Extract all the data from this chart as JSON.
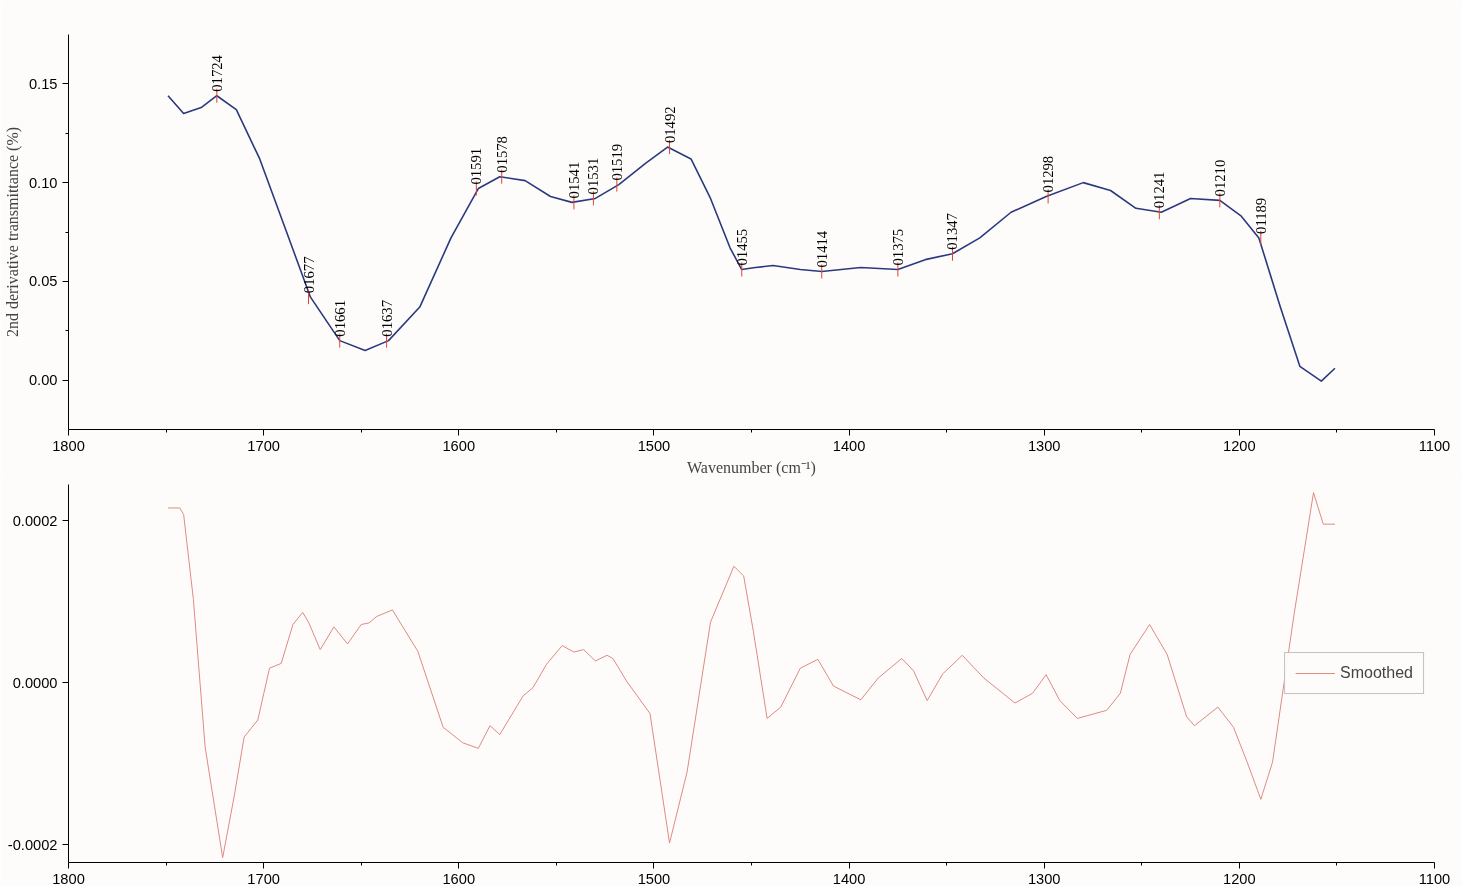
{
  "chart_data": [
    {
      "type": "line",
      "xlabel": "Wavenumber (cm⁻¹)",
      "ylabel": "2nd derivative transmittance (%)",
      "xlim": [
        1800,
        1100
      ],
      "ylim": [
        -0.025,
        0.175
      ],
      "xticks": [
        1800,
        {
          "value": 1750,
          "label": null
        },
        1700,
        {
          "value": 1650,
          "label": null
        },
        1600,
        {
          "value": 1550,
          "label": null
        },
        1500,
        {
          "value": 1450,
          "label": null
        },
        1400,
        {
          "value": 1350,
          "label": null
        },
        1300,
        {
          "value": 1250,
          "label": null
        },
        1200,
        {
          "value": 1150,
          "label": null
        },
        1100
      ],
      "yticks": [
        {
          "value": 0,
          "label": "0.00"
        },
        {
          "value": 0.025,
          "label": null
        },
        0.05,
        {
          "value": 0.075,
          "label": null
        },
        {
          "value": 0.1,
          "label": "0.10"
        },
        {
          "value": 0.125,
          "label": null
        },
        0.15
      ],
      "grid": false,
      "legend": false,
      "series": [
        {
          "color": "#2b3a7e",
          "x": [
            1749,
            1741,
            1732,
            1724,
            1714,
            1702,
            1689,
            1676,
            1661,
            1648,
            1636,
            1620,
            1604,
            1590,
            1579,
            1566,
            1553,
            1542,
            1530,
            1518,
            1504,
            1493,
            1481,
            1471,
            1461,
            1455,
            1448,
            1439,
            1425,
            1414,
            1394,
            1375,
            1361,
            1347,
            1333,
            1317,
            1299,
            1280,
            1266,
            1253,
            1240,
            1225,
            1210,
            1199,
            1190,
            1179,
            1169,
            1158,
            1151
          ],
          "values": [
            0.144,
            0.135,
            0.138,
            0.144,
            0.137,
            0.112,
            0.077,
            0.042,
            0.02,
            0.015,
            0.02,
            0.037,
            0.072,
            0.097,
            0.103,
            0.101,
            0.093,
            0.09,
            0.092,
            0.099,
            0.11,
            0.118,
            0.112,
            0.092,
            0.067,
            0.056,
            0.057,
            0.058,
            0.056,
            0.055,
            0.057,
            0.056,
            0.061,
            0.064,
            0.072,
            0.085,
            0.093,
            0.1,
            0.096,
            0.087,
            0.085,
            0.092,
            0.091,
            0.083,
            0.072,
            0.037,
            0.007,
            -0.0005,
            0.006
          ]
        }
      ],
      "annotations": [
        {
          "text": "01724",
          "x": 1724,
          "y": 0.144
        },
        {
          "text": "01677",
          "x": 1677,
          "y": 0.042
        },
        {
          "text": "01661",
          "x": 1661,
          "y": 0.02
        },
        {
          "text": "01637",
          "x": 1637,
          "y": 0.02
        },
        {
          "text": "01591",
          "x": 1591,
          "y": 0.097
        },
        {
          "text": "01578",
          "x": 1578,
          "y": 0.103
        },
        {
          "text": "01541",
          "x": 1541,
          "y": 0.09
        },
        {
          "text": "01531",
          "x": 1531,
          "y": 0.092
        },
        {
          "text": "01519",
          "x": 1519,
          "y": 0.099
        },
        {
          "text": "01492",
          "x": 1492,
          "y": 0.118
        },
        {
          "text": "01455",
          "x": 1455,
          "y": 0.056
        },
        {
          "text": "01414",
          "x": 1414,
          "y": 0.055
        },
        {
          "text": "01375",
          "x": 1375,
          "y": 0.056
        },
        {
          "text": "01347",
          "x": 1347,
          "y": 0.064
        },
        {
          "text": "01298",
          "x": 1298,
          "y": 0.093
        },
        {
          "text": "01241",
          "x": 1241,
          "y": 0.085
        },
        {
          "text": "01210",
          "x": 1210,
          "y": 0.091
        },
        {
          "text": "01189",
          "x": 1189,
          "y": 0.072
        }
      ]
    },
    {
      "type": "line",
      "xlim": [
        1800,
        1100
      ],
      "ylim": [
        -0.000222,
        0.000245
      ],
      "xticks": [
        1800,
        {
          "value": 1750,
          "label": null
        },
        1700,
        {
          "value": 1650,
          "label": null
        },
        1600,
        {
          "value": 1550,
          "label": null
        },
        1500,
        {
          "value": 1450,
          "label": null
        },
        1400,
        {
          "value": 1350,
          "label": null
        },
        1300,
        {
          "value": 1250,
          "label": null
        },
        1200,
        {
          "value": 1150,
          "label": null
        },
        1100
      ],
      "yticks": [
        -0.0002,
        {
          "value": 0,
          "label": "0.0000"
        },
        0.0002
      ],
      "grid": false,
      "legend": "right",
      "series": [
        {
          "name": "Smoothed",
          "color": "#e08a80",
          "x": [
            1749,
            1743,
            1741,
            1736,
            1730,
            1721,
            1715,
            1710,
            1703,
            1697,
            1691,
            1685,
            1680,
            1677,
            1671,
            1664,
            1657,
            1650,
            1646,
            1642,
            1634,
            1621,
            1608,
            1598,
            1590,
            1584,
            1579,
            1567,
            1562,
            1555,
            1547,
            1541,
            1536,
            1530,
            1524,
            1521,
            1514,
            1502,
            1492,
            1483,
            1471,
            1459,
            1454,
            1449,
            1442,
            1435,
            1425,
            1416,
            1408,
            1394,
            1385,
            1373,
            1367,
            1360,
            1352,
            1342,
            1331,
            1315,
            1306,
            1299,
            1292,
            1283,
            1268,
            1261,
            1256,
            1246,
            1237,
            1227,
            1223,
            1211,
            1203,
            1196,
            1189,
            1183,
            1172,
            1162,
            1157,
            1151
          ],
          "values": [
            0.000216,
            0.000216,
            0.000208,
            0.000103,
            -7.9e-05,
            -0.000216,
            -0.000139,
            -6.7e-05,
            -4.6e-05,
            1.8e-05,
            2.4e-05,
            7.2e-05,
            8.7e-05,
            7.5e-05,
            4.1e-05,
            6.9e-05,
            4.8e-05,
            7.2e-05,
            7.4e-05,
            8.2e-05,
            9e-05,
            3.9e-05,
            -5.5e-05,
            -7.4e-05,
            -8.1e-05,
            -5.3e-05,
            -6.4e-05,
            -1.6e-05,
            -6e-06,
            2.3e-05,
            4.6e-05,
            3.8e-05,
            4.1e-05,
            2.7e-05,
            3.4e-05,
            3e-05,
            2e-06,
            -3.8e-05,
            -0.000198,
            -0.00011,
            7.5e-05,
            0.000144,
            0.000132,
            6.3e-05,
            -4.4e-05,
            -3e-05,
            1.8e-05,
            2.9e-05,
            -4e-06,
            -2.1e-05,
            6e-06,
            3e-05,
            1.5e-05,
            -2.2e-05,
            1.1e-05,
            3.4e-05,
            6e-06,
            -2.5e-05,
            -1.3e-05,
            1e-05,
            -2.2e-05,
            -4.4e-05,
            -3.4e-05,
            -1.3e-05,
            3.5e-05,
            7.2e-05,
            3.5e-05,
            -4.2e-05,
            -5.3e-05,
            -3e-05,
            -5.5e-05,
            -9.8e-05,
            -0.000144,
            -9.8e-05,
            8.4e-05,
            0.000235,
            0.000196,
            0.000196
          ]
        }
      ]
    }
  ]
}
